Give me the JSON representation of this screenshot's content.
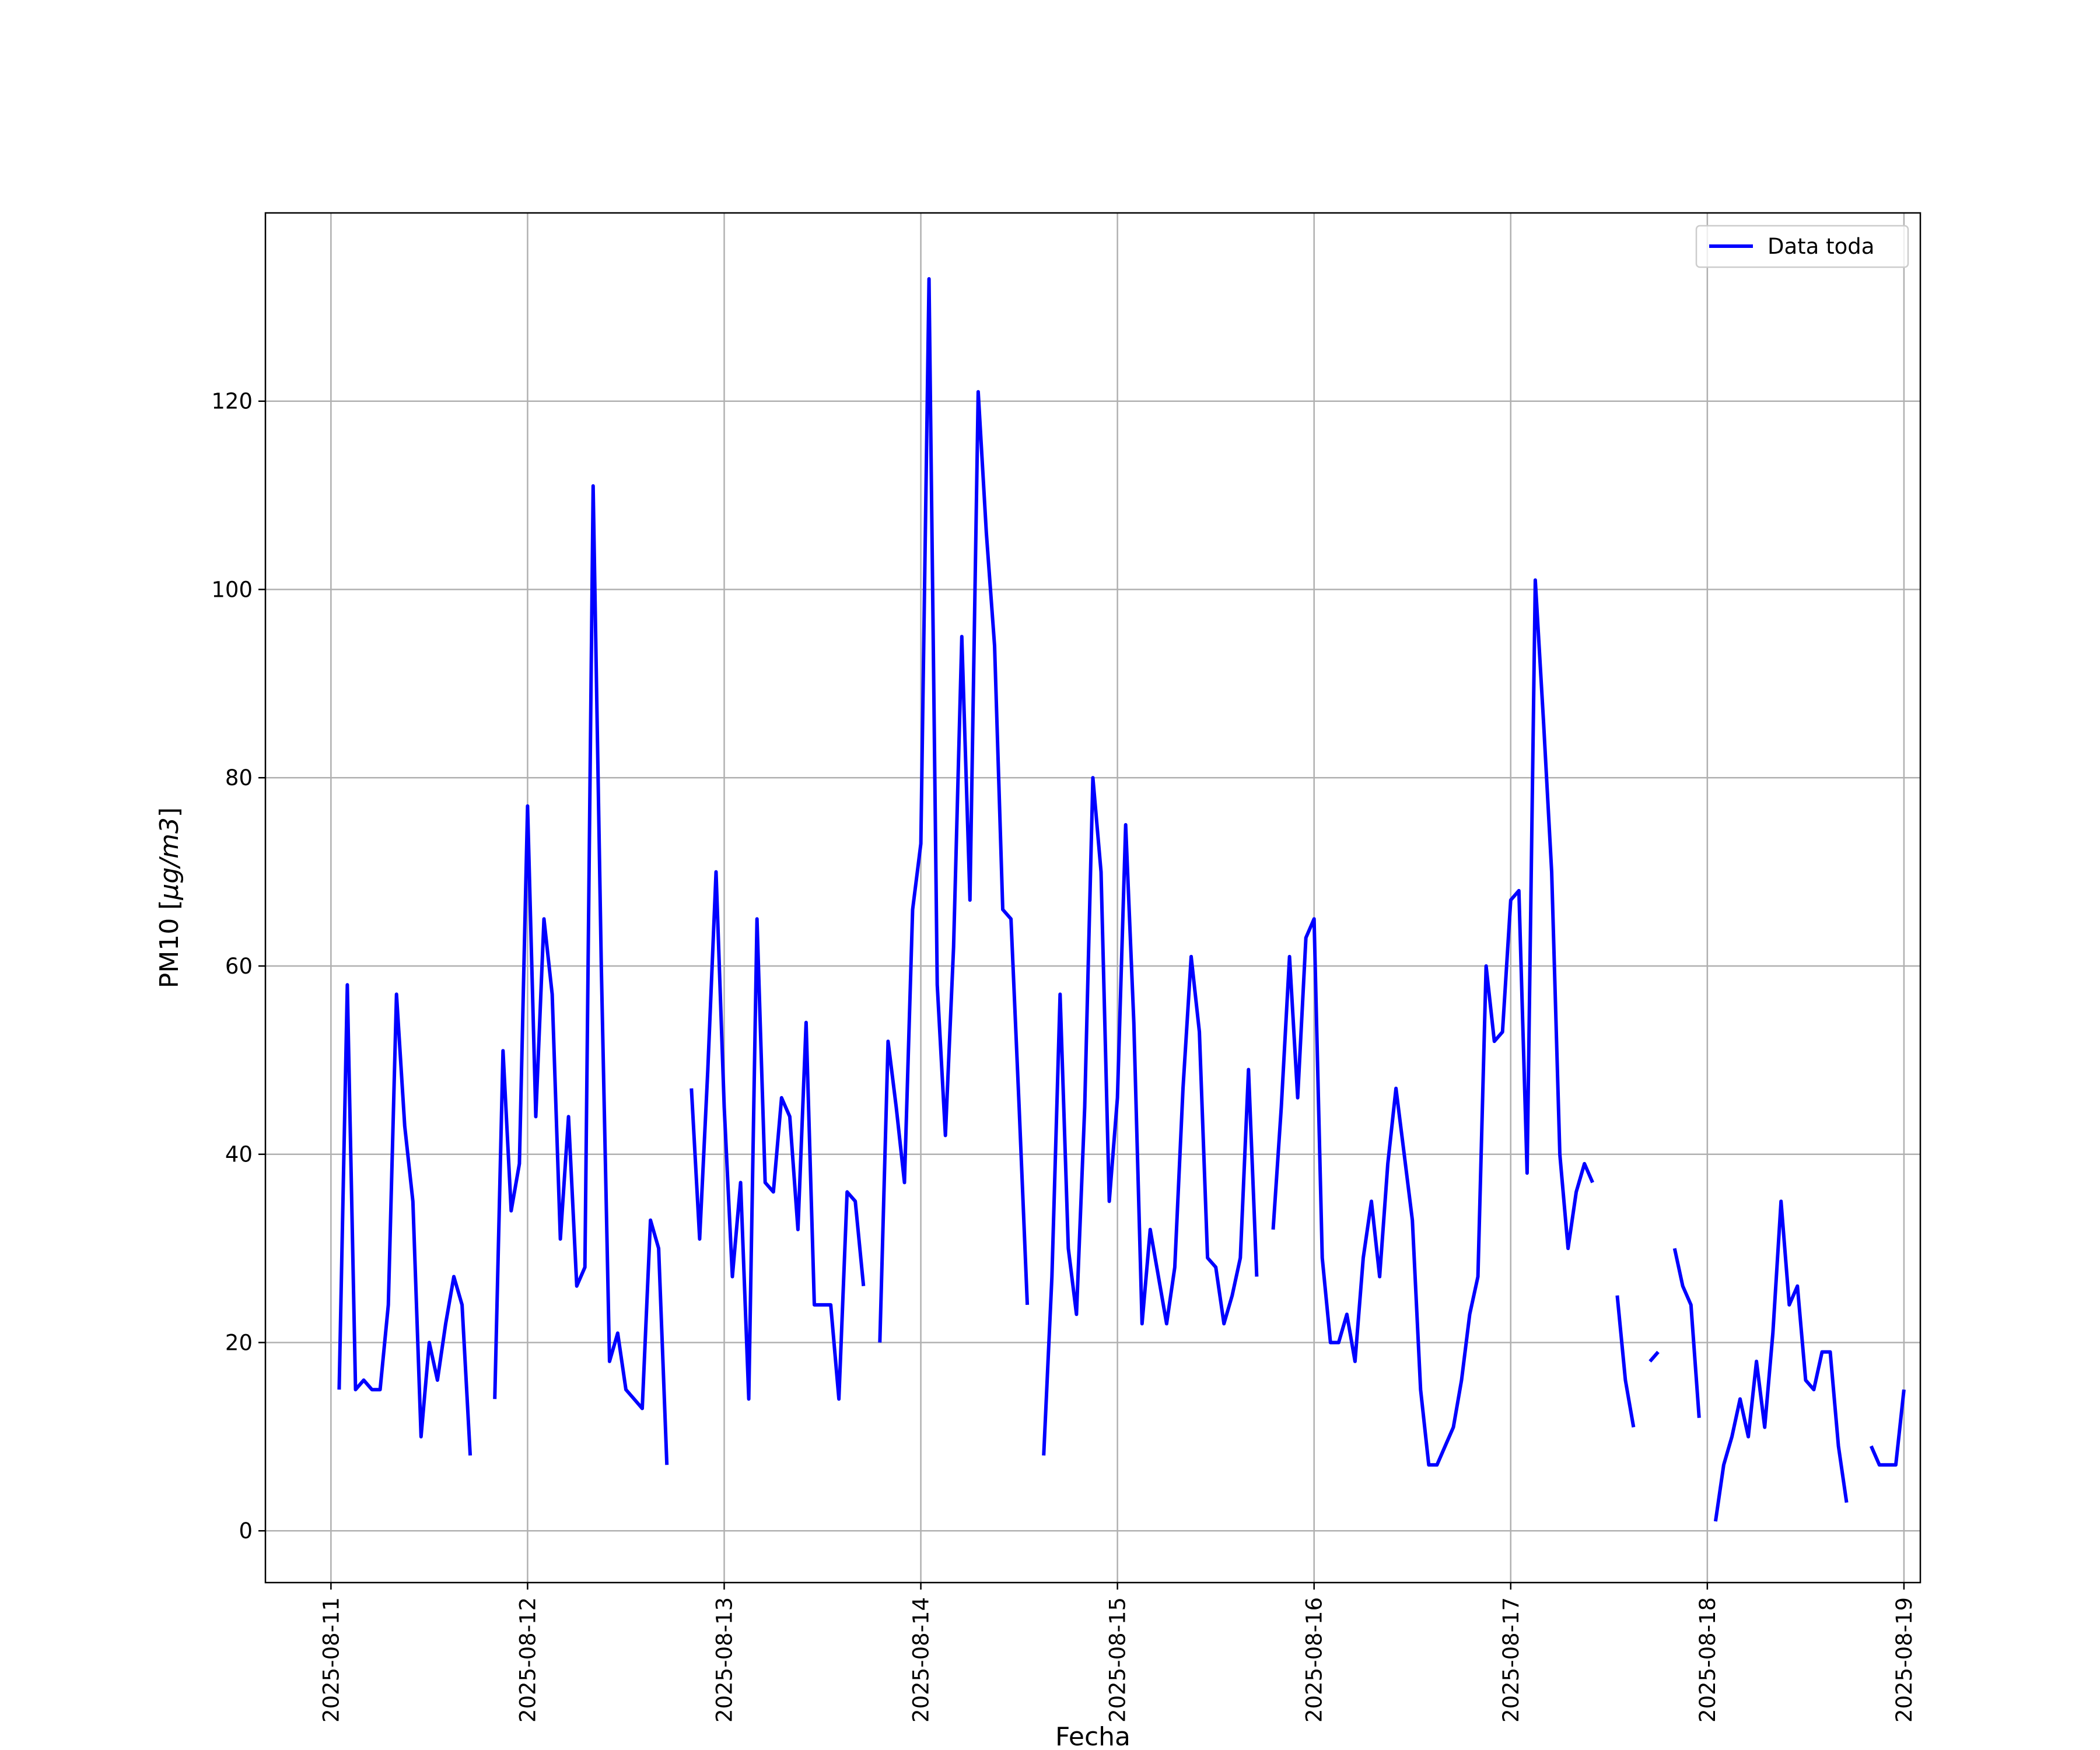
{
  "chart_data": {
    "type": "line",
    "xlabel": "Fecha",
    "ylabel_plain": "PM10 [",
    "ylabel_math": "μg/m3",
    "ylabel_close": "]",
    "xlim": [
      "2025-08-10T16:00",
      "2025-08-19T02:00"
    ],
    "ylim": [
      -5.5,
      140
    ],
    "x_ticks": [
      "2025-08-11",
      "2025-08-12",
      "2025-08-13",
      "2025-08-14",
      "2025-08-15",
      "2025-08-16",
      "2025-08-17",
      "2025-08-18",
      "2025-08-19"
    ],
    "y_ticks": [
      0,
      20,
      40,
      60,
      80,
      100,
      120
    ],
    "grid": true,
    "legend_position": "top-right",
    "series": [
      {
        "name": "Data toda",
        "color": "#0000ff",
        "segments": [
          [
            [
              "2025-08-11T01:00",
              15
            ],
            [
              "2025-08-11T02:00",
              58
            ],
            [
              "2025-08-11T03:00",
              15
            ],
            [
              "2025-08-11T04:00",
              16
            ],
            [
              "2025-08-11T05:00",
              15
            ],
            [
              "2025-08-11T06:00",
              15
            ],
            [
              "2025-08-11T07:00",
              24
            ],
            [
              "2025-08-11T08:00",
              57
            ],
            [
              "2025-08-11T09:00",
              43
            ],
            [
              "2025-08-11T10:00",
              35
            ],
            [
              "2025-08-11T11:00",
              10
            ],
            [
              "2025-08-11T12:00",
              20
            ],
            [
              "2025-08-11T13:00",
              16
            ],
            [
              "2025-08-11T14:00",
              22
            ],
            [
              "2025-08-11T15:00",
              27
            ],
            [
              "2025-08-11T16:00",
              24
            ],
            [
              "2025-08-11T17:00",
              8
            ]
          ],
          [
            [
              "2025-08-11T20:00",
              14
            ],
            [
              "2025-08-11T21:00",
              51
            ],
            [
              "2025-08-11T22:00",
              34
            ],
            [
              "2025-08-11T23:00",
              39
            ],
            [
              "2025-08-12T00:00",
              77
            ],
            [
              "2025-08-12T01:00",
              44
            ],
            [
              "2025-08-12T02:00",
              65
            ],
            [
              "2025-08-12T03:00",
              57
            ],
            [
              "2025-08-12T04:00",
              31
            ],
            [
              "2025-08-12T05:00",
              44
            ],
            [
              "2025-08-12T06:00",
              26
            ],
            [
              "2025-08-12T07:00",
              28
            ],
            [
              "2025-08-12T08:00",
              111
            ],
            [
              "2025-08-12T09:00",
              60
            ],
            [
              "2025-08-12T10:00",
              18
            ],
            [
              "2025-08-12T11:00",
              21
            ],
            [
              "2025-08-12T12:00",
              15
            ],
            [
              "2025-08-12T13:00",
              14
            ],
            [
              "2025-08-12T14:00",
              13
            ],
            [
              "2025-08-12T15:00",
              33
            ],
            [
              "2025-08-12T16:00",
              30
            ],
            [
              "2025-08-12T17:00",
              7
            ]
          ],
          [
            [
              "2025-08-12T20:00",
              47
            ],
            [
              "2025-08-12T21:00",
              31
            ],
            [
              "2025-08-12T22:00",
              49
            ],
            [
              "2025-08-12T23:00",
              70
            ],
            [
              "2025-08-13T00:00",
              45
            ],
            [
              "2025-08-13T01:00",
              27
            ],
            [
              "2025-08-13T02:00",
              37
            ],
            [
              "2025-08-13T03:00",
              14
            ],
            [
              "2025-08-13T04:00",
              65
            ],
            [
              "2025-08-13T05:00",
              37
            ],
            [
              "2025-08-13T06:00",
              36
            ],
            [
              "2025-08-13T07:00",
              46
            ],
            [
              "2025-08-13T08:00",
              44
            ],
            [
              "2025-08-13T09:00",
              32
            ],
            [
              "2025-08-13T10:00",
              54
            ],
            [
              "2025-08-13T11:00",
              24
            ],
            [
              "2025-08-13T12:00",
              24
            ],
            [
              "2025-08-13T13:00",
              24
            ],
            [
              "2025-08-13T14:00",
              14
            ],
            [
              "2025-08-13T15:00",
              36
            ],
            [
              "2025-08-13T16:00",
              35
            ],
            [
              "2025-08-13T17:00",
              26
            ]
          ],
          [
            [
              "2025-08-13T19:00",
              20
            ],
            [
              "2025-08-13T20:00",
              52
            ],
            [
              "2025-08-13T21:00",
              45
            ],
            [
              "2025-08-13T22:00",
              37
            ],
            [
              "2025-08-13T23:00",
              66
            ],
            [
              "2025-08-14T00:00",
              73
            ],
            [
              "2025-08-14T01:00",
              133
            ],
            [
              "2025-08-14T02:00",
              58
            ],
            [
              "2025-08-14T03:00",
              42
            ],
            [
              "2025-08-14T04:00",
              62
            ],
            [
              "2025-08-14T05:00",
              95
            ],
            [
              "2025-08-14T06:00",
              67
            ],
            [
              "2025-08-14T07:00",
              121
            ],
            [
              "2025-08-14T08:00",
              106
            ],
            [
              "2025-08-14T09:00",
              94
            ],
            [
              "2025-08-14T10:00",
              66
            ],
            [
              "2025-08-14T11:00",
              65
            ],
            [
              "2025-08-14T12:00",
              45
            ],
            [
              "2025-08-14T13:00",
              24
            ]
          ],
          [
            [
              "2025-08-14T15:00",
              8
            ],
            [
              "2025-08-14T16:00",
              27
            ],
            [
              "2025-08-14T17:00",
              57
            ],
            [
              "2025-08-14T18:00",
              30
            ],
            [
              "2025-08-14T19:00",
              23
            ],
            [
              "2025-08-14T20:00",
              45
            ],
            [
              "2025-08-14T21:00",
              80
            ],
            [
              "2025-08-14T22:00",
              70
            ],
            [
              "2025-08-14T23:00",
              35
            ],
            [
              "2025-08-15T00:00",
              46
            ],
            [
              "2025-08-15T01:00",
              75
            ],
            [
              "2025-08-15T02:00",
              54
            ],
            [
              "2025-08-15T03:00",
              22
            ],
            [
              "2025-08-15T04:00",
              32
            ],
            [
              "2025-08-15T05:00",
              27
            ],
            [
              "2025-08-15T06:00",
              22
            ],
            [
              "2025-08-15T07:00",
              28
            ],
            [
              "2025-08-15T08:00",
              47
            ],
            [
              "2025-08-15T09:00",
              61
            ],
            [
              "2025-08-15T10:00",
              53
            ],
            [
              "2025-08-15T11:00",
              29
            ],
            [
              "2025-08-15T12:00",
              28
            ],
            [
              "2025-08-15T13:00",
              22
            ],
            [
              "2025-08-15T14:00",
              25
            ],
            [
              "2025-08-15T15:00",
              29
            ],
            [
              "2025-08-15T16:00",
              49
            ],
            [
              "2025-08-15T17:00",
              27
            ]
          ],
          [
            [
              "2025-08-15T19:00",
              32
            ],
            [
              "2025-08-15T20:00",
              45
            ],
            [
              "2025-08-15T21:00",
              61
            ],
            [
              "2025-08-15T22:00",
              46
            ],
            [
              "2025-08-15T23:00",
              63
            ],
            [
              "2025-08-16T00:00",
              65
            ],
            [
              "2025-08-16T01:00",
              29
            ],
            [
              "2025-08-16T02:00",
              20
            ],
            [
              "2025-08-16T03:00",
              20
            ],
            [
              "2025-08-16T04:00",
              23
            ],
            [
              "2025-08-16T05:00",
              18
            ],
            [
              "2025-08-16T06:00",
              29
            ],
            [
              "2025-08-16T07:00",
              35
            ],
            [
              "2025-08-16T08:00",
              27
            ],
            [
              "2025-08-16T09:00",
              39
            ],
            [
              "2025-08-16T10:00",
              47
            ],
            [
              "2025-08-16T11:00",
              40
            ],
            [
              "2025-08-16T12:00",
              33
            ],
            [
              "2025-08-16T13:00",
              15
            ],
            [
              "2025-08-16T14:00",
              7
            ],
            [
              "2025-08-16T15:00",
              7
            ],
            [
              "2025-08-16T16:00",
              9
            ],
            [
              "2025-08-16T17:00",
              11
            ],
            [
              "2025-08-16T18:00",
              16
            ],
            [
              "2025-08-16T19:00",
              23
            ],
            [
              "2025-08-16T20:00",
              27
            ],
            [
              "2025-08-16T21:00",
              60
            ],
            [
              "2025-08-16T22:00",
              52
            ],
            [
              "2025-08-16T23:00",
              53
            ],
            [
              "2025-08-17T00:00",
              67
            ],
            [
              "2025-08-17T01:00",
              68
            ],
            [
              "2025-08-17T02:00",
              38
            ],
            [
              "2025-08-17T03:00",
              101
            ],
            [
              "2025-08-17T04:00",
              86
            ],
            [
              "2025-08-17T05:00",
              70
            ],
            [
              "2025-08-17T06:00",
              40
            ],
            [
              "2025-08-17T07:00",
              30
            ],
            [
              "2025-08-17T08:00",
              36
            ],
            [
              "2025-08-17T09:00",
              39
            ],
            [
              "2025-08-17T10:00",
              37
            ]
          ],
          [
            [
              "2025-08-17T13:00",
              25
            ],
            [
              "2025-08-17T14:00",
              16
            ],
            [
              "2025-08-17T15:00",
              11
            ]
          ],
          [
            [
              "2025-08-17T17:00",
              18
            ],
            [
              "2025-08-17T18:00",
              19
            ]
          ],
          [
            [
              "2025-08-17T20:00",
              30
            ],
            [
              "2025-08-17T21:00",
              26
            ],
            [
              "2025-08-17T22:00",
              24
            ],
            [
              "2025-08-17T23:00",
              12
            ]
          ],
          [
            [
              "2025-08-18T01:00",
              1
            ],
            [
              "2025-08-18T02:00",
              7
            ],
            [
              "2025-08-18T03:00",
              10
            ],
            [
              "2025-08-18T04:00",
              14
            ],
            [
              "2025-08-18T05:00",
              10
            ],
            [
              "2025-08-18T06:00",
              18
            ],
            [
              "2025-08-18T07:00",
              11
            ],
            [
              "2025-08-18T08:00",
              21
            ],
            [
              "2025-08-18T09:00",
              35
            ],
            [
              "2025-08-18T10:00",
              24
            ],
            [
              "2025-08-18T11:00",
              26
            ],
            [
              "2025-08-18T12:00",
              16
            ],
            [
              "2025-08-18T13:00",
              15
            ],
            [
              "2025-08-18T14:00",
              19
            ],
            [
              "2025-08-18T15:00",
              19
            ],
            [
              "2025-08-18T16:00",
              9
            ],
            [
              "2025-08-18T17:00",
              3
            ]
          ],
          [
            [
              "2025-08-18T20:00",
              9
            ],
            [
              "2025-08-18T21:00",
              7
            ],
            [
              "2025-08-18T22:00",
              7
            ],
            [
              "2025-08-18T23:00",
              7
            ],
            [
              "2025-08-19T00:00",
              15
            ]
          ]
        ]
      }
    ]
  }
}
